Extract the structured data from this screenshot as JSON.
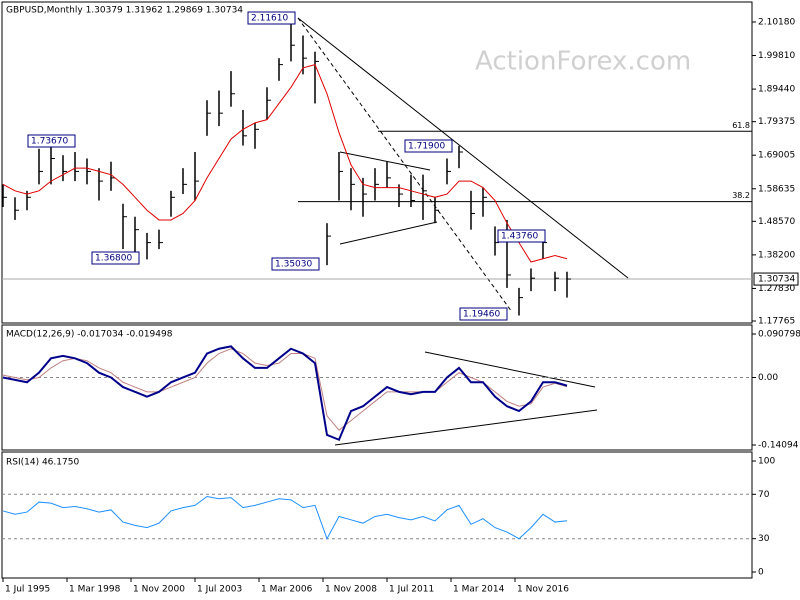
{
  "chart_data": [
    {
      "type": "hlc",
      "title": "GBPUSD,Monthly 1.30379 1.31962 1.29869 1.30734",
      "watermark": "ActionForex.com",
      "color": "#000000",
      "high": [
        1.6,
        1.56,
        1.58,
        1.71,
        1.7367,
        1.69,
        1.7,
        1.68,
        1.65,
        1.67,
        1.54,
        1.5,
        1.45,
        1.46,
        1.58,
        1.65,
        1.7,
        1.86,
        1.89,
        1.95,
        1.83,
        1.79,
        1.9,
        1.99,
        2.1161,
        2.06,
        2.01,
        1.48,
        1.7,
        1.65,
        1.62,
        1.65,
        1.67,
        1.6,
        1.63,
        1.63,
        1.56,
        1.68,
        1.719,
        1.58,
        1.59,
        1.47,
        1.49,
        1.28,
        1.34,
        1.4376,
        1.33,
        1.33
      ],
      "low": [
        1.53,
        1.49,
        1.52,
        1.6,
        1.6,
        1.61,
        1.61,
        1.6,
        1.55,
        1.58,
        1.4,
        1.38,
        1.368,
        1.4,
        1.5,
        1.57,
        1.55,
        1.75,
        1.78,
        1.84,
        1.72,
        1.71,
        1.8,
        1.92,
        1.98,
        1.94,
        1.85,
        1.3503,
        1.55,
        1.52,
        1.5,
        1.55,
        1.59,
        1.53,
        1.53,
        1.49,
        1.48,
        1.6,
        1.65,
        1.46,
        1.5,
        1.38,
        1.28,
        1.1946,
        1.27,
        1.37,
        1.27,
        1.25
      ],
      "close": [
        1.56,
        1.52,
        1.56,
        1.64,
        1.68,
        1.64,
        1.64,
        1.64,
        1.61,
        1.62,
        1.5,
        1.46,
        1.42,
        1.42,
        1.56,
        1.6,
        1.61,
        1.82,
        1.82,
        1.88,
        1.75,
        1.77,
        1.86,
        1.97,
        2.03,
        1.99,
        1.98,
        1.44,
        1.64,
        1.6,
        1.57,
        1.6,
        1.62,
        1.57,
        1.55,
        1.58,
        1.52,
        1.64,
        1.7,
        1.51,
        1.56,
        1.42,
        1.32,
        1.25,
        1.31,
        1.42,
        1.31,
        1.30734
      ],
      "series": [
        {
          "color": "#e00000",
          "values": [
            1.6,
            1.58,
            1.57,
            1.58,
            1.61,
            1.63,
            1.65,
            1.65,
            1.64,
            1.63,
            1.6,
            1.56,
            1.52,
            1.49,
            1.49,
            1.51,
            1.55,
            1.62,
            1.68,
            1.74,
            1.77,
            1.79,
            1.8,
            1.85,
            1.9,
            1.96,
            1.97,
            1.88,
            1.76,
            1.66,
            1.6,
            1.59,
            1.59,
            1.59,
            1.58,
            1.57,
            1.56,
            1.57,
            1.61,
            1.61,
            1.59,
            1.55,
            1.48,
            1.42,
            1.36,
            1.37,
            1.38,
            1.37
          ]
        }
      ],
      "xlim": [
        -0.083,
        62.417
      ],
      "ylim": [
        1.1715,
        2.1543
      ],
      "yticks": [
        {
          "value": 2.1018,
          "label": "2.10180"
        },
        {
          "value": 1.9981,
          "label": "1.99810"
        },
        {
          "value": 1.8944,
          "label": "1.89440"
        },
        {
          "value": 1.79375,
          "label": "1.79375"
        },
        {
          "value": 1.69005,
          "label": "1.69005"
        },
        {
          "value": 1.58635,
          "label": "1.58635"
        },
        {
          "value": 1.4857,
          "label": "1.48570"
        },
        {
          "value": 1.382,
          "label": "1.38200"
        },
        {
          "value": 1.2783,
          "label": "1.27830"
        },
        {
          "value": 1.17765,
          "label": "1.17765"
        }
      ],
      "current": {
        "value": 1.30734,
        "label": "1.30734"
      },
      "levels": [
        {
          "value": 1.7641,
          "label": "61.8"
        },
        {
          "value": 1.5466,
          "label": "38.2"
        }
      ],
      "annotations": [
        "2.11610",
        "1.73670",
        "1.36800",
        "1.35030",
        "1.71900",
        "1.43760",
        "1.19460"
      ],
      "grid": false
    },
    {
      "type": "line",
      "title": "MACD(12,26,9) -0.017034 -0.019498",
      "series": [
        {
          "color": "#00008b",
          "values": [
            0.0,
            -0.005,
            -0.01,
            0.01,
            0.04,
            0.045,
            0.04,
            0.03,
            0.01,
            0.0,
            -0.02,
            -0.03,
            -0.04,
            -0.03,
            -0.01,
            0.0,
            0.01,
            0.05,
            0.06,
            0.065,
            0.04,
            0.02,
            0.02,
            0.04,
            0.06,
            0.05,
            0.03,
            -0.12,
            -0.13,
            -0.07,
            -0.06,
            -0.04,
            -0.02,
            -0.03,
            -0.035,
            -0.03,
            -0.03,
            0.0,
            0.02,
            -0.01,
            -0.01,
            -0.04,
            -0.06,
            -0.07,
            -0.05,
            -0.01,
            -0.01,
            -0.017034
          ]
        },
        {
          "color": "#c08080",
          "values": [
            0.005,
            0.0,
            -0.005,
            0.0,
            0.02,
            0.035,
            0.04,
            0.035,
            0.02,
            0.01,
            -0.01,
            -0.02,
            -0.03,
            -0.03,
            -0.02,
            -0.01,
            0.0,
            0.03,
            0.05,
            0.06,
            0.05,
            0.03,
            0.025,
            0.03,
            0.05,
            0.05,
            0.04,
            -0.08,
            -0.11,
            -0.09,
            -0.07,
            -0.05,
            -0.03,
            -0.03,
            -0.03,
            -0.03,
            -0.03,
            -0.01,
            0.01,
            0.0,
            -0.01,
            -0.03,
            -0.05,
            -0.06,
            -0.055,
            -0.02,
            -0.012,
            -0.019498
          ]
        }
      ],
      "xlim": [
        -0.083,
        62.417
      ],
      "ylim": [
        -0.1514,
        0.1075
      ],
      "yticks": [
        0.090798,
        {
          "value": 0,
          "label": "0.00"
        },
        -0.14094
      ],
      "grid": true
    },
    {
      "type": "line",
      "title": "RSI(14) 46.1750",
      "series": [
        {
          "color": "#1e90ff",
          "values": [
            55,
            52,
            54,
            63,
            62,
            58,
            59,
            57,
            54,
            56,
            45,
            42,
            40,
            44,
            55,
            58,
            60,
            68,
            66,
            67,
            58,
            60,
            63,
            66,
            65,
            58,
            60,
            30,
            50,
            47,
            44,
            50,
            52,
            49,
            47,
            50,
            46,
            56,
            60,
            43,
            48,
            40,
            36,
            30,
            40,
            52,
            45,
            46.175
          ]
        }
      ],
      "xlim": [
        -0.083,
        62.417
      ],
      "ylim": [
        -5.4,
        107.2
      ],
      "yticks": [
        100,
        70,
        30,
        0
      ],
      "grid": true,
      "xticks": [
        {
          "value": 0,
          "label": "1 Jul 1995"
        },
        {
          "value": 5.333,
          "label": "1 Mar 1998"
        },
        {
          "value": 10.667,
          "label": "1 Nov 2000"
        },
        {
          "value": 16,
          "label": "1 Jul 2003"
        },
        {
          "value": 21.333,
          "label": "1 Mar 2006"
        },
        {
          "value": 26.667,
          "label": "1 Nov 2008"
        },
        {
          "value": 32,
          "label": "1 Jul 2011"
        },
        {
          "value": 37.333,
          "label": "1 Mar 2014"
        },
        {
          "value": 42.667,
          "label": "1 Nov 2016"
        }
      ]
    }
  ]
}
